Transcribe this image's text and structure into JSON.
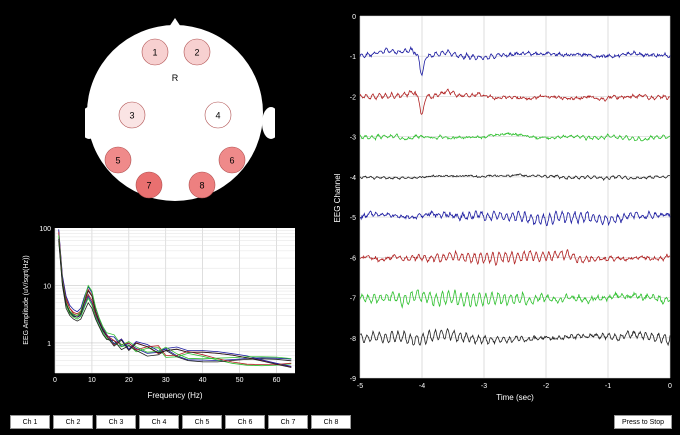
{
  "head": {
    "orientation_label": "R",
    "electrodes": [
      {
        "label": "1",
        "fill": "#f7d0d0"
      },
      {
        "label": "2",
        "fill": "#f7d0d0"
      },
      {
        "label": "3",
        "fill": "#fae4e4"
      },
      {
        "label": "4",
        "fill": "#ffffff"
      },
      {
        "label": "5",
        "fill": "#ef8a8a"
      },
      {
        "label": "6",
        "fill": "#ef8a8a"
      },
      {
        "label": "7",
        "fill": "#e97070"
      },
      {
        "label": "8",
        "fill": "#ed8080"
      }
    ]
  },
  "colors": {
    "blue": "#1a1aa0",
    "red": "#b02020",
    "green": "#2ec02e",
    "black": "#202020",
    "electrode_stroke": "#b05050"
  },
  "chart_data": [
    {
      "type": "line",
      "title": "",
      "xlabel": "Frequency (Hz)",
      "ylabel": "EEG Amplitude (uV/sqrt(Hz))",
      "xlim": [
        0,
        65
      ],
      "ylim": [
        0.3,
        100
      ],
      "yscale": "log",
      "x_ticks": [
        "0",
        "10",
        "20",
        "30",
        "40",
        "50",
        "60"
      ],
      "y_ticks": [
        "100",
        "10",
        "1"
      ],
      "x": [
        1,
        2,
        3,
        4,
        5,
        6,
        7,
        8,
        9,
        10,
        11,
        12,
        13,
        14,
        16,
        18,
        20,
        22,
        25,
        28,
        30,
        33,
        36,
        40,
        44,
        48,
        52,
        56,
        60,
        64
      ],
      "series": [
        {
          "name": "Ch 1",
          "color": "#1a1aa0",
          "values": [
            80,
            12,
            5,
            3.5,
            3,
            2.8,
            3,
            4.5,
            6.5,
            5,
            3,
            2.2,
            1.6,
            1.3,
            1.1,
            1,
            0.9,
            0.85,
            0.8,
            0.75,
            0.7,
            0.65,
            0.62,
            0.6,
            0.55,
            0.52,
            0.5,
            0.48,
            0.46,
            0.45
          ]
        },
        {
          "name": "Ch 2",
          "color": "#b02020",
          "values": [
            90,
            14,
            6,
            4,
            3.2,
            3,
            3.3,
            5,
            7,
            5.5,
            3.2,
            2.3,
            1.7,
            1.4,
            1.1,
            1,
            0.92,
            0.86,
            0.78,
            0.72,
            0.7,
            0.66,
            0.64,
            0.6,
            0.56,
            0.53,
            0.5,
            0.49,
            0.47,
            0.45
          ]
        },
        {
          "name": "Ch 3",
          "color": "#2ec02e",
          "values": [
            70,
            11,
            4.5,
            3.2,
            2.8,
            2.6,
            2.9,
            4.2,
            6,
            4.6,
            2.8,
            2,
            1.5,
            1.2,
            1,
            0.9,
            0.85,
            0.8,
            0.75,
            0.7,
            0.68,
            0.64,
            0.6,
            0.58,
            0.55,
            0.52,
            0.5,
            0.48,
            0.46,
            0.44
          ]
        },
        {
          "name": "Ch 4",
          "color": "#202020",
          "values": [
            60,
            10,
            4,
            3,
            2.6,
            2.4,
            2.6,
            3.6,
            5,
            4,
            2.6,
            1.9,
            1.4,
            1.15,
            0.95,
            0.88,
            0.82,
            0.78,
            0.72,
            0.68,
            0.66,
            0.62,
            0.6,
            0.56,
            0.52,
            0.5,
            0.48,
            0.46,
            0.44,
            0.42
          ]
        },
        {
          "name": "Ch 5",
          "color": "#1a1aa0",
          "values": [
            95,
            15,
            6.5,
            4.5,
            3.8,
            3.5,
            4,
            6.5,
            9.5,
            7.5,
            4,
            2.6,
            1.8,
            1.4,
            1.15,
            1,
            0.95,
            0.9,
            0.85,
            0.8,
            0.76,
            0.72,
            0.68,
            0.64,
            0.6,
            0.56,
            0.54,
            0.5,
            0.48,
            0.46
          ]
        },
        {
          "name": "Ch 6",
          "color": "#b02020",
          "values": [
            85,
            13,
            5.5,
            4,
            3.4,
            3.2,
            3.6,
            5.8,
            8.5,
            6.8,
            3.6,
            2.4,
            1.7,
            1.35,
            1.1,
            0.98,
            0.92,
            0.87,
            0.8,
            0.76,
            0.73,
            0.68,
            0.65,
            0.62,
            0.58,
            0.55,
            0.52,
            0.5,
            0.47,
            0.45
          ]
        },
        {
          "name": "Ch 7",
          "color": "#2ec02e",
          "values": [
            75,
            12,
            5,
            3.6,
            3.1,
            3,
            3.5,
            6,
            10,
            8,
            4.2,
            2.7,
            1.9,
            1.5,
            1.2,
            1.05,
            0.97,
            0.9,
            0.84,
            0.78,
            0.75,
            0.7,
            0.66,
            0.63,
            0.6,
            0.56,
            0.53,
            0.5,
            0.48,
            0.46
          ]
        },
        {
          "name": "Ch 8",
          "color": "#202020",
          "values": [
            65,
            11,
            4.8,
            3.4,
            2.9,
            2.8,
            3.2,
            5.2,
            8,
            6.5,
            3.5,
            2.3,
            1.65,
            1.3,
            1.05,
            0.95,
            0.9,
            0.84,
            0.78,
            0.74,
            0.7,
            0.66,
            0.63,
            0.6,
            0.56,
            0.53,
            0.5,
            0.48,
            0.46,
            0.44
          ]
        }
      ]
    },
    {
      "type": "line",
      "title": "",
      "xlabel": "Time (sec)",
      "ylabel": "EEG Channel",
      "xlim": [
        -5,
        0
      ],
      "ylim": [
        -9,
        0
      ],
      "x_ticks": [
        "-5",
        "-4",
        "-3",
        "-2",
        "-1",
        "0"
      ],
      "y_ticks": [
        "0",
        "-1",
        "-2",
        "-3",
        "-4",
        "-5",
        "-6",
        "-7",
        "-8",
        "-9"
      ],
      "series": [
        {
          "name": "Ch 1",
          "offset": -1,
          "color": "#1a1aa0",
          "alpha_amp": 0.05,
          "noise": 0.05,
          "seed": 1
        },
        {
          "name": "Ch 2",
          "offset": -2,
          "color": "#b02020",
          "alpha_amp": 0.05,
          "noise": 0.05,
          "seed": 2
        },
        {
          "name": "Ch 3",
          "offset": -3,
          "color": "#2ec02e",
          "alpha_amp": 0.04,
          "noise": 0.04,
          "seed": 3
        },
        {
          "name": "Ch 4",
          "offset": -4,
          "color": "#202020",
          "alpha_amp": 0.03,
          "noise": 0.03,
          "seed": 4
        },
        {
          "name": "Ch 5",
          "offset": -5,
          "color": "#1a1aa0",
          "alpha_amp": 0.12,
          "noise": 0.07,
          "seed": 5
        },
        {
          "name": "Ch 6",
          "offset": -6,
          "color": "#b02020",
          "alpha_amp": 0.12,
          "noise": 0.06,
          "seed": 6
        },
        {
          "name": "Ch 7",
          "offset": -7,
          "color": "#2ec02e",
          "alpha_amp": 0.16,
          "noise": 0.07,
          "seed": 7
        },
        {
          "name": "Ch 8",
          "offset": -8,
          "color": "#202020",
          "alpha_amp": 0.13,
          "noise": 0.06,
          "seed": 8
        }
      ]
    }
  ],
  "buttons": {
    "channels": [
      "Ch 1",
      "Ch 2",
      "Ch 3",
      "Ch 4",
      "Ch 5",
      "Ch 6",
      "Ch 7",
      "Ch 8"
    ],
    "stop_label": "Press to Stop"
  }
}
